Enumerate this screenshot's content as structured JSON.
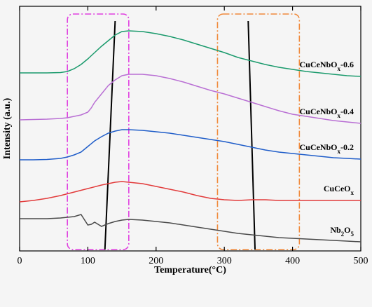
{
  "chart_data": {
    "type": "line",
    "xlabel": "Temperature(°C)",
    "ylabel": "Intensity (a.u.)",
    "xlim": [
      0,
      500
    ],
    "xticks": [
      0,
      100,
      200,
      300,
      400,
      500
    ],
    "yticks_shown": false,
    "grid": false,
    "legend": "inline labels at right end of each curve",
    "series": [
      {
        "name": "CuCeNbO",
        "name_sub": "x",
        "name_suffix": "-0.6",
        "color": "#1a9a6c",
        "points": [
          [
            0,
            104
          ],
          [
            20,
            104
          ],
          [
            40,
            104
          ],
          [
            60,
            103.5
          ],
          [
            70,
            102
          ],
          [
            80,
            98
          ],
          [
            90,
            92
          ],
          [
            100,
            84
          ],
          [
            110,
            75
          ],
          [
            120,
            66
          ],
          [
            130,
            58
          ],
          [
            140,
            50
          ],
          [
            150,
            45
          ],
          [
            160,
            44
          ],
          [
            180,
            45
          ],
          [
            200,
            48
          ],
          [
            220,
            52
          ],
          [
            240,
            57
          ],
          [
            260,
            63
          ],
          [
            280,
            69
          ],
          [
            300,
            75
          ],
          [
            320,
            82
          ],
          [
            340,
            87
          ],
          [
            360,
            92
          ],
          [
            380,
            96
          ],
          [
            400,
            99
          ],
          [
            420,
            102
          ],
          [
            440,
            104
          ],
          [
            460,
            106
          ],
          [
            480,
            108
          ],
          [
            500,
            109
          ]
        ]
      },
      {
        "name": "CuCeNbO",
        "name_sub": "x",
        "name_suffix": "-0.4",
        "color": "#b96fd4",
        "points": [
          [
            0,
            171
          ],
          [
            20,
            170.5
          ],
          [
            40,
            170
          ],
          [
            60,
            169
          ],
          [
            70,
            168
          ],
          [
            80,
            166
          ],
          [
            90,
            164
          ],
          [
            100,
            160
          ],
          [
            105,
            154
          ],
          [
            110,
            146
          ],
          [
            120,
            134
          ],
          [
            130,
            122
          ],
          [
            140,
            114
          ],
          [
            150,
            108
          ],
          [
            160,
            106
          ],
          [
            180,
            106
          ],
          [
            200,
            108
          ],
          [
            220,
            112
          ],
          [
            240,
            117
          ],
          [
            260,
            123
          ],
          [
            280,
            129
          ],
          [
            300,
            134
          ],
          [
            320,
            140
          ],
          [
            340,
            146
          ],
          [
            360,
            152
          ],
          [
            380,
            158
          ],
          [
            400,
            163
          ],
          [
            420,
            166
          ],
          [
            440,
            169
          ],
          [
            460,
            172
          ],
          [
            480,
            174
          ],
          [
            500,
            176
          ]
        ]
      },
      {
        "name": "CuCeNbO",
        "name_sub": "x",
        "name_suffix": "-0.2",
        "color": "#1f5dc9",
        "points": [
          [
            0,
            228
          ],
          [
            20,
            228
          ],
          [
            40,
            227.5
          ],
          [
            60,
            226
          ],
          [
            70,
            224
          ],
          [
            80,
            221
          ],
          [
            90,
            217
          ],
          [
            100,
            209
          ],
          [
            110,
            201
          ],
          [
            120,
            195
          ],
          [
            130,
            190
          ],
          [
            140,
            187
          ],
          [
            150,
            185
          ],
          [
            160,
            185
          ],
          [
            180,
            186
          ],
          [
            200,
            188
          ],
          [
            220,
            190
          ],
          [
            240,
            193
          ],
          [
            260,
            196
          ],
          [
            280,
            199
          ],
          [
            300,
            202
          ],
          [
            320,
            206
          ],
          [
            340,
            210
          ],
          [
            360,
            214
          ],
          [
            380,
            217
          ],
          [
            400,
            219
          ],
          [
            420,
            221
          ],
          [
            440,
            223
          ],
          [
            460,
            225
          ],
          [
            480,
            226
          ],
          [
            500,
            227
          ]
        ]
      },
      {
        "name": "CuCeO",
        "name_sub": "x",
        "name_suffix": "",
        "color": "#e23b3b",
        "points": [
          [
            0,
            288
          ],
          [
            20,
            286
          ],
          [
            40,
            283
          ],
          [
            60,
            279
          ],
          [
            80,
            274
          ],
          [
            100,
            269
          ],
          [
            120,
            264
          ],
          [
            140,
            260
          ],
          [
            150,
            259
          ],
          [
            160,
            260
          ],
          [
            180,
            262
          ],
          [
            200,
            266
          ],
          [
            220,
            270
          ],
          [
            240,
            274
          ],
          [
            260,
            279
          ],
          [
            280,
            283
          ],
          [
            300,
            285
          ],
          [
            320,
            286
          ],
          [
            340,
            285
          ],
          [
            360,
            285
          ],
          [
            380,
            286
          ],
          [
            400,
            286
          ],
          [
            420,
            286
          ],
          [
            440,
            286
          ],
          [
            460,
            286
          ],
          [
            480,
            286
          ],
          [
            500,
            286
          ]
        ]
      },
      {
        "name": "Nb",
        "name_sub": "2",
        "name_suffix": "O",
        "name_sub2": "5",
        "color": "#4a4a4a",
        "points": [
          [
            0,
            312
          ],
          [
            20,
            312
          ],
          [
            40,
            312
          ],
          [
            60,
            311
          ],
          [
            70,
            310
          ],
          [
            80,
            309
          ],
          [
            90,
            306
          ],
          [
            100,
            321
          ],
          [
            105,
            320
          ],
          [
            110,
            317
          ],
          [
            120,
            323
          ],
          [
            125,
            321
          ],
          [
            130,
            319
          ],
          [
            140,
            316
          ],
          [
            150,
            314
          ],
          [
            160,
            313
          ],
          [
            180,
            314
          ],
          [
            200,
            316
          ],
          [
            220,
            318
          ],
          [
            240,
            321
          ],
          [
            260,
            324
          ],
          [
            280,
            327
          ],
          [
            300,
            330
          ],
          [
            320,
            333
          ],
          [
            340,
            335
          ],
          [
            360,
            337
          ],
          [
            380,
            339
          ],
          [
            400,
            340
          ],
          [
            420,
            341
          ],
          [
            440,
            342
          ],
          [
            460,
            343
          ],
          [
            480,
            344
          ],
          [
            500,
            345
          ]
        ]
      }
    ],
    "annotations": [
      {
        "kind": "rounded-rect",
        "style": "dash-dot",
        "color": "#e040e0",
        "x_range": [
          70,
          160
        ]
      },
      {
        "kind": "rounded-rect",
        "style": "dash-dot",
        "color": "#f08a3c",
        "x_range": [
          290,
          410
        ]
      },
      {
        "kind": "line",
        "color": "#000000",
        "from_x": 125,
        "to_x": 140
      },
      {
        "kind": "line",
        "color": "#000000",
        "from_x": 345,
        "to_x": 335
      }
    ]
  }
}
